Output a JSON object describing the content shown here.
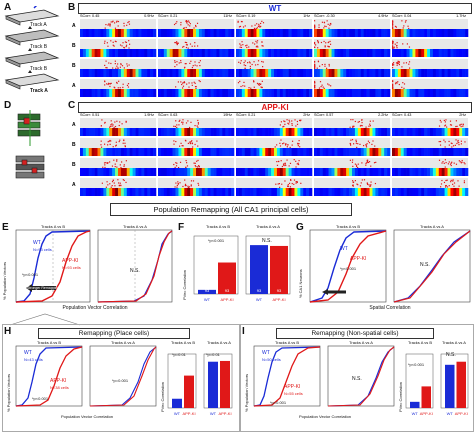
{
  "panels": {
    "A": {
      "label": "A",
      "tracks": [
        "Track A",
        "Track B",
        "Track B",
        "Track A"
      ]
    },
    "B": {
      "label": "B",
      "title": "WT",
      "title_color": "#1a2bd6",
      "cells": [
        {
          "scorr": "SCorr: 0.45",
          "rate": "0.9Hz"
        },
        {
          "scorr": "SCorr: 0.21",
          "rate": "11Hz"
        },
        {
          "scorr": "SCorr: 0.19",
          "rate": "1Hz"
        },
        {
          "scorr": "SCorr: -0.30",
          "rate": "4.9Hz"
        },
        {
          "scorr": "SCorr: 0.04",
          "rate": "1.7Hz"
        }
      ],
      "row_letters": [
        "A",
        "B",
        "B",
        "A"
      ]
    },
    "C": {
      "label": "C",
      "title": "APP-KI",
      "title_color": "#e01818",
      "cells": [
        {
          "scorr": "SCorr: 0.51",
          "rate": "1.9Hz"
        },
        {
          "scorr": "SCorr: 0.63",
          "rate": "19Hz"
        },
        {
          "scorr": "SCorr: 0.21",
          "rate": "2Hz"
        },
        {
          "scorr": "SCorr: 0.57",
          "rate": "2.2Hz"
        },
        {
          "scorr": "SCorr: 0.43",
          "rate": "2Hz"
        }
      ],
      "row_letters": [
        "A",
        "B",
        "B",
        "A"
      ]
    },
    "D": {
      "label": "D"
    },
    "banner": {
      "text": "Population Remapping  (All CA1 principal cells)"
    },
    "E": {
      "label": "E",
      "ylabel": "% Population Vectors",
      "xlabel": "Population Vector Correlation",
      "sub_left": "Tracks A vs B",
      "sub_right": "Tracks A vs A",
      "wt": "WT",
      "wt_n": "N=93 cells",
      "ki": "APP-KI",
      "ki_n": "N=93 cells",
      "pval": "*p<0.001",
      "ns": "N.S.",
      "arrow_text": "Stronger Remapping"
    },
    "F": {
      "label": "F",
      "ylabel": "PVec Correlation",
      "left_title": "Tracks A vs B",
      "right_title": "Tracks A vs A",
      "pval": "*p<0.001",
      "ns": "N.S.",
      "categories": [
        "WT",
        "APP-KI"
      ],
      "n_labels": [
        "93",
        "93",
        "93",
        "93"
      ]
    },
    "G": {
      "label": "G",
      "ylabel": "% CA1 Neurons",
      "xlabel": "Spatial Correlation",
      "sub_left": "Tracks A vs B",
      "sub_right": "Tracks A vs A",
      "wt": "WT",
      "ki": "APP-KI",
      "pval": "*p<0.001",
      "ns": "N.S."
    },
    "H": {
      "label": "H",
      "title": "Remapping  (Place cells)",
      "sub_left": "Tracks A vs B",
      "sub_right": "Tracks A vs A",
      "wt": "WT",
      "wt_n": "N=43 cells",
      "ki": "APP-KI",
      "ki_n": "N=38 cells",
      "pval1": "*p<0.001",
      "pval2": "*p=0.001",
      "pval3": "*p=0.01",
      "pval4": "*p=0.01",
      "ylabel": "% Population Vectors",
      "xlabel": "Population Vector Correlation",
      "bar_ylabel": "PVec Correlation",
      "bar_left_title": "Tracks A vs B",
      "bar_right_title": "Tracks A vs A",
      "categories": [
        "WT",
        "APP-KI"
      ]
    },
    "I": {
      "label": "I",
      "title": "Remapping  (Non-spatial cells)",
      "sub_left": "Tracks A vs B",
      "sub_right": "Tracks A vs A",
      "wt": "WT",
      "wt_n": "N=50 cells",
      "ki": "APP-KI",
      "ki_n": "N=55 cells",
      "pval1": "*p<0.001",
      "ns1": "N.S.",
      "pval2": "*p<0.001",
      "ns2": "N.S.",
      "ylabel": "% Population Vectors",
      "xlabel": "Population Vector Correlation",
      "bar_ylabel": "PVec Correlation",
      "bar_left_title": "Tracks A vs B",
      "bar_right_title": "Tracks A vs A",
      "categories": [
        "WT",
        "APP-KI"
      ]
    }
  },
  "colors": {
    "wt": "#1a2bd6",
    "ki": "#e01818",
    "banner_bg": "#ffffff"
  },
  "chart_data": [
    {
      "type": "bar",
      "panel": "F-left",
      "categories": [
        "WT",
        "APP-KI"
      ],
      "values": [
        0.05,
        0.38
      ],
      "ylim": [
        0,
        0.7
      ]
    },
    {
      "type": "bar",
      "panel": "F-right",
      "categories": [
        "WT",
        "APP-KI"
      ],
      "values": [
        0.59,
        0.58
      ],
      "ylim": [
        0,
        0.7
      ]
    },
    {
      "type": "bar",
      "panel": "H-left",
      "categories": [
        "WT",
        "APP-KI"
      ],
      "values": [
        0.12,
        0.42
      ],
      "ylim": [
        0,
        0.7
      ]
    },
    {
      "type": "bar",
      "panel": "H-right",
      "categories": [
        "WT",
        "APP-KI"
      ],
      "values": [
        0.6,
        0.61
      ],
      "ylim": [
        0,
        0.7
      ]
    },
    {
      "type": "bar",
      "panel": "I-left",
      "categories": [
        "WT",
        "APP-KI"
      ],
      "values": [
        0.08,
        0.28
      ],
      "ylim": [
        0,
        0.7
      ]
    },
    {
      "type": "bar",
      "panel": "I-right",
      "categories": [
        "WT",
        "APP-KI"
      ],
      "values": [
        0.56,
        0.6
      ],
      "ylim": [
        0,
        0.7
      ]
    }
  ]
}
